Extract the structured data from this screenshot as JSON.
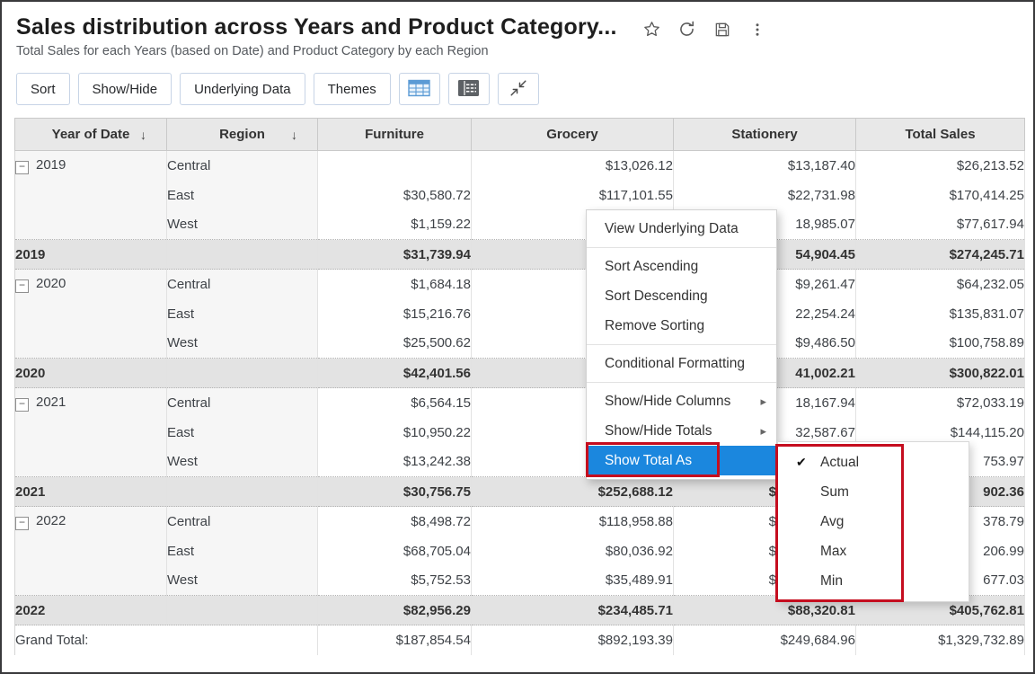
{
  "colors": {
    "accent": "#1b87de",
    "annotation": "#c50d1f",
    "header_band": "#e8e8e8",
    "subtotal_band": "#e3e3e3"
  },
  "header": {
    "title": "Sales distribution across Years and Product Category...",
    "subtitle": "Total Sales for each Years (based on Date) and Product Category by each Region",
    "icons": [
      "favorite-star-icon",
      "refresh-icon",
      "save-icon",
      "more-options-icon"
    ]
  },
  "toolbar": {
    "buttons": [
      "Sort",
      "Show/Hide",
      "Underlying Data",
      "Themes"
    ],
    "icon_buttons": [
      "table-view-icon",
      "pivot-view-icon",
      "collapse-icon"
    ]
  },
  "table": {
    "columns": [
      {
        "label": "Year of Date",
        "sortable": true
      },
      {
        "label": "Region",
        "sortable": true
      },
      {
        "label": "Furniture",
        "sortable": false
      },
      {
        "label": "Grocery",
        "sortable": false
      },
      {
        "label": "Stationery",
        "sortable": false
      },
      {
        "label": "Total Sales",
        "sortable": false
      }
    ],
    "rows": [
      {
        "type": "data",
        "year": "2019",
        "collapse": true,
        "region": "Central",
        "cells": [
          "",
          "$13,026.12",
          "$13,187.40",
          "$26,213.52"
        ],
        "peek": []
      },
      {
        "type": "data",
        "year": "",
        "region": "East",
        "cells": [
          "$30,580.72",
          "$117,101.55",
          "$22,731.98",
          "$170,414.25"
        ],
        "peek": []
      },
      {
        "type": "data",
        "year": "",
        "region": "West",
        "cells": [
          "$1,159.22",
          "",
          "18,985.07",
          "$77,617.94"
        ],
        "peek": []
      },
      {
        "type": "subtotal",
        "year": "2019",
        "region": "",
        "cells": [
          "$31,739.94",
          "",
          "54,904.45",
          "$274,245.71"
        ],
        "peek": []
      },
      {
        "type": "data",
        "year": "2020",
        "collapse": true,
        "region": "Central",
        "cells": [
          "$1,684.18",
          "",
          "$9,261.47",
          "$64,232.05"
        ],
        "peek": []
      },
      {
        "type": "data",
        "year": "",
        "region": "East",
        "cells": [
          "$15,216.76",
          "",
          "22,254.24",
          "$135,831.07"
        ],
        "peek": []
      },
      {
        "type": "data",
        "year": "",
        "region": "West",
        "cells": [
          "$25,500.62",
          "",
          "$9,486.50",
          "$100,758.89"
        ],
        "peek": []
      },
      {
        "type": "subtotal",
        "year": "2020",
        "region": "",
        "cells": [
          "$42,401.56",
          "",
          "41,002.21",
          "$300,822.01"
        ],
        "peek": []
      },
      {
        "type": "data",
        "year": "2021",
        "collapse": true,
        "region": "Central",
        "cells": [
          "$6,564.15",
          "",
          "18,167.94",
          "$72,033.19"
        ],
        "peek": []
      },
      {
        "type": "data",
        "year": "",
        "region": "East",
        "cells": [
          "$10,950.22",
          "",
          "32,587.67",
          "$144,115.20"
        ],
        "peek": []
      },
      {
        "type": "data",
        "year": "",
        "region": "West",
        "cells": [
          "$13,242.38",
          "",
          "",
          "753.97"
        ],
        "peek": []
      },
      {
        "type": "subtotal",
        "year": "2021",
        "region": "",
        "cells": [
          "$30,756.75",
          "$252,688.12",
          "$",
          "902.36"
        ],
        "peek": [
          2
        ]
      },
      {
        "type": "data",
        "year": "2022",
        "collapse": true,
        "region": "Central",
        "cells": [
          "$8,498.72",
          "$118,958.88",
          "$",
          "378.79"
        ],
        "peek": [
          2
        ]
      },
      {
        "type": "data",
        "year": "",
        "region": "East",
        "cells": [
          "$68,705.04",
          "$80,036.92",
          "$",
          "206.99"
        ],
        "peek": [
          2
        ]
      },
      {
        "type": "data",
        "year": "",
        "region": "West",
        "cells": [
          "$5,752.53",
          "$35,489.91",
          "$",
          "677.03"
        ],
        "peek": [
          2
        ]
      },
      {
        "type": "subtotal",
        "year": "2022",
        "region": "",
        "cells": [
          "$82,956.29",
          "$234,485.71",
          "$88,320.81",
          "$405,762.81"
        ],
        "peek": []
      },
      {
        "type": "grandtotal",
        "year": "Grand Total:",
        "region": "",
        "cells": [
          "$187,854.54",
          "$892,193.39",
          "$249,684.96",
          "$1,329,732.89"
        ],
        "peek": []
      }
    ]
  },
  "context_menu": {
    "items": [
      {
        "label": "View Underlying Data"
      },
      {
        "divider": true
      },
      {
        "label": "Sort Ascending"
      },
      {
        "label": "Sort Descending"
      },
      {
        "label": "Remove Sorting"
      },
      {
        "divider": true
      },
      {
        "label": "Conditional Formatting"
      },
      {
        "divider": true
      },
      {
        "label": "Show/Hide Columns",
        "submenu": true
      },
      {
        "label": "Show/Hide Totals",
        "submenu": true
      },
      {
        "label": "Show Total As",
        "highlighted": true
      }
    ]
  },
  "submenu": {
    "items": [
      {
        "label": "Actual",
        "checked": true
      },
      {
        "label": "Sum",
        "checked": false
      },
      {
        "label": "Avg",
        "checked": false
      },
      {
        "label": "Max",
        "checked": false
      },
      {
        "label": "Min",
        "checked": false
      }
    ]
  }
}
